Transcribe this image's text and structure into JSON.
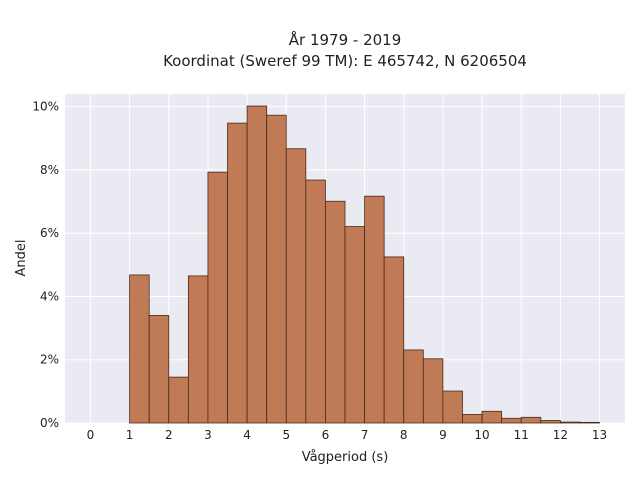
{
  "chart_data": {
    "type": "bar",
    "title": [
      "År 1979 - 2019",
      "Koordinat (Sweref 99 TM): E 465742, N 6206504"
    ],
    "xlabel": "Vågperiod (s)",
    "ylabel": "Andel",
    "bin_width": 0.5,
    "bins_start": [
      1.0,
      1.5,
      2.0,
      2.5,
      3.0,
      3.5,
      4.0,
      4.5,
      5.0,
      5.5,
      6.0,
      6.5,
      7.0,
      7.5,
      8.0,
      8.5,
      9.0,
      9.5,
      10.0,
      10.5,
      11.0,
      11.5,
      12.0,
      12.5
    ],
    "values": [
      4.68,
      3.4,
      1.45,
      4.65,
      7.93,
      9.48,
      10.02,
      9.73,
      8.67,
      7.68,
      7.01,
      6.21,
      7.17,
      5.25,
      2.31,
      2.03,
      1.01,
      0.27,
      0.37,
      0.15,
      0.18,
      0.08,
      0.03,
      0.02
    ],
    "xlim": [
      -0.65,
      13.65
    ],
    "ylim": [
      0,
      10.4
    ],
    "xticks": [
      0,
      1,
      2,
      3,
      4,
      5,
      6,
      7,
      8,
      9,
      10,
      11,
      12,
      13
    ],
    "xtick_labels": [
      "0",
      "1",
      "2",
      "3",
      "4",
      "5",
      "6",
      "7",
      "8",
      "9",
      "10",
      "11",
      "12",
      "13"
    ],
    "yticks": [
      0,
      2,
      4,
      6,
      8,
      10
    ],
    "ytick_labels": [
      "0%",
      "2%",
      "4%",
      "6%",
      "8%",
      "10%"
    ],
    "grid": true,
    "bar_color": "#c07a55",
    "edge_color": "#4a2a1a",
    "background_color": "#eaeaf2"
  }
}
